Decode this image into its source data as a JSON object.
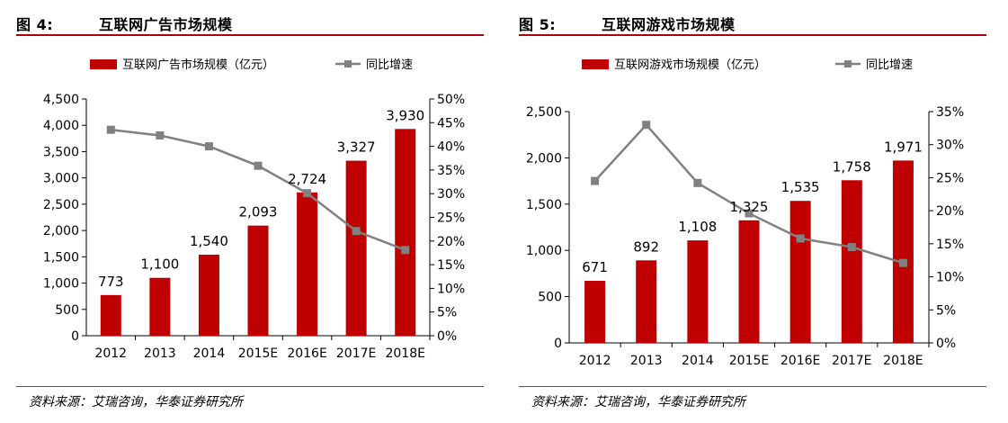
{
  "charts": [
    {
      "fig_number": "图 4:",
      "fig_title": "互联网广告市场规模",
      "source": "资料来源：艾瑞咨询，华泰证券研究所",
      "colors": {
        "bar": "#c00000",
        "line": "#808080"
      }
    },
    {
      "fig_number": "图 5:",
      "fig_title": "互联网游戏市场规模",
      "source": "资料来源：艾瑞咨询，华泰证券研究所",
      "colors": {
        "bar": "#c00000",
        "line": "#808080"
      }
    }
  ],
  "chart_data": [
    {
      "type": "bar",
      "title": "互联网广告市场规模",
      "categories": [
        "2012",
        "2013",
        "2014",
        "2015E",
        "2016E",
        "2017E",
        "2018E"
      ],
      "series": [
        {
          "name": "互联网广告市场规模（亿元）",
          "type": "bar",
          "axis": "left",
          "values": [
            773,
            1100,
            1540,
            2093,
            2724,
            3327,
            3930
          ],
          "labels": [
            "773",
            "1,100",
            "1,540",
            "2,093",
            "2,724",
            "3,327",
            "3,930"
          ]
        },
        {
          "name": "同比增速",
          "type": "line",
          "axis": "right",
          "values": [
            43.5,
            42.3,
            40.0,
            35.9,
            30.1,
            22.1,
            18.1
          ]
        }
      ],
      "left_axis": {
        "min": 0,
        "max": 4500,
        "step": 500,
        "ticks": [
          "0",
          "500",
          "1,000",
          "1,500",
          "2,000",
          "2,500",
          "3,000",
          "3,500",
          "4,000",
          "4,500"
        ]
      },
      "right_axis": {
        "min": 0,
        "max": 50,
        "step": 5,
        "ticks": [
          "0%",
          "5%",
          "10%",
          "15%",
          "20%",
          "25%",
          "30%",
          "35%",
          "40%",
          "45%",
          "50%"
        ]
      },
      "legend_position": "top-center",
      "grid": false
    },
    {
      "type": "bar",
      "title": "互联网游戏市场规模",
      "categories": [
        "2012",
        "2013",
        "2014",
        "2015E",
        "2016E",
        "2017E",
        "2018E"
      ],
      "series": [
        {
          "name": "互联网游戏市场规模（亿元）",
          "type": "bar",
          "axis": "left",
          "values": [
            671,
            892,
            1108,
            1325,
            1535,
            1758,
            1971
          ],
          "labels": [
            "671",
            "892",
            "1,108",
            "1,325",
            "1,535",
            "1,758",
            "1,971"
          ]
        },
        {
          "name": "同比增速",
          "type": "line",
          "axis": "right",
          "values": [
            24.5,
            33.0,
            24.2,
            19.6,
            15.8,
            14.5,
            12.1
          ]
        }
      ],
      "left_axis": {
        "min": 0,
        "max": 2500,
        "step": 500,
        "ticks": [
          "0",
          "500",
          "1,000",
          "1,500",
          "2,000",
          "2,500"
        ]
      },
      "right_axis": {
        "min": 0,
        "max": 35,
        "step": 5,
        "ticks": [
          "0%",
          "5%",
          "10%",
          "15%",
          "20%",
          "25%",
          "30%",
          "35%"
        ]
      },
      "legend_position": "top-center",
      "grid": false
    }
  ]
}
